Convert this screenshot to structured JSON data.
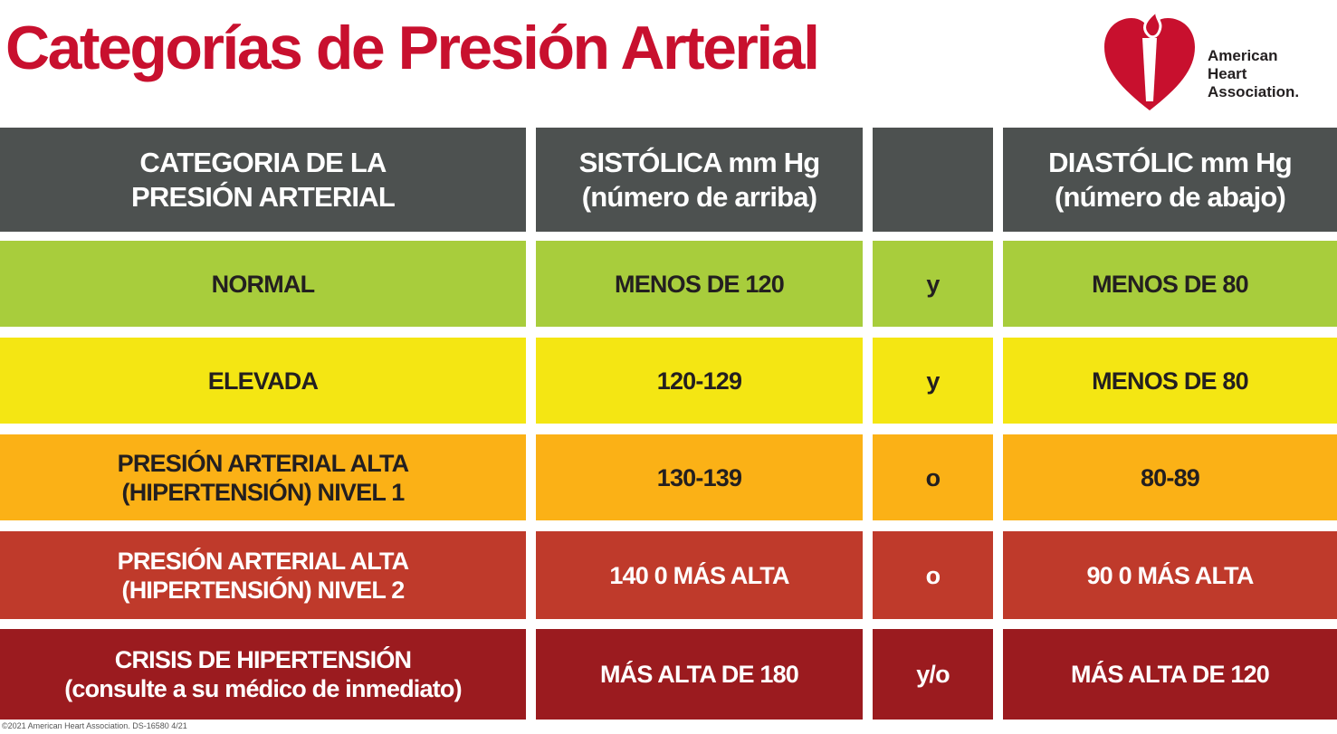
{
  "header": {
    "title": "Categorías de Presión Arterial",
    "logo": [
      "American",
      "Heart",
      "Association."
    ]
  },
  "table": {
    "columns": {
      "category": [
        "CATEGORIA DE LA",
        "PRESIÓN ARTERIAL"
      ],
      "systolic": [
        "SISTÓLICA mm Hg",
        "(número de arriba)"
      ],
      "diastolic": [
        "DIASTÓLIC mm Hg",
        "(número de abajo)"
      ]
    },
    "rows": [
      {
        "category": [
          "NORMAL"
        ],
        "systolic": "MENOS DE 120",
        "connector": "y",
        "diastolic": "MENOS DE 80"
      },
      {
        "category": [
          "ELEVADA"
        ],
        "systolic": "120-129",
        "connector": "y",
        "diastolic": "MENOS DE 80"
      },
      {
        "category": [
          "PRESIÓN ARTERIAL ALTA",
          "(HIPERTENSIÓN) NIVEL 1"
        ],
        "systolic": "130-139",
        "connector": "o",
        "diastolic": "80-89"
      },
      {
        "category": [
          "PRESIÓN ARTERIAL ALTA",
          "(HIPERTENSIÓN) NIVEL 2"
        ],
        "systolic": "140 0 MÁS ALTA",
        "connector": "o",
        "diastolic": "90 0 MÁS ALTA"
      },
      {
        "category": [
          "CRISIS DE HIPERTENSIÓN",
          "(consulte a su médico de inmediato)"
        ],
        "systolic": "MÁS ALTA DE 180",
        "connector": "y/o",
        "diastolic": "MÁS ALTA DE 120"
      }
    ]
  },
  "footer": {
    "copyright": "©2021 American Heart Association. DS-16580 4/21"
  }
}
